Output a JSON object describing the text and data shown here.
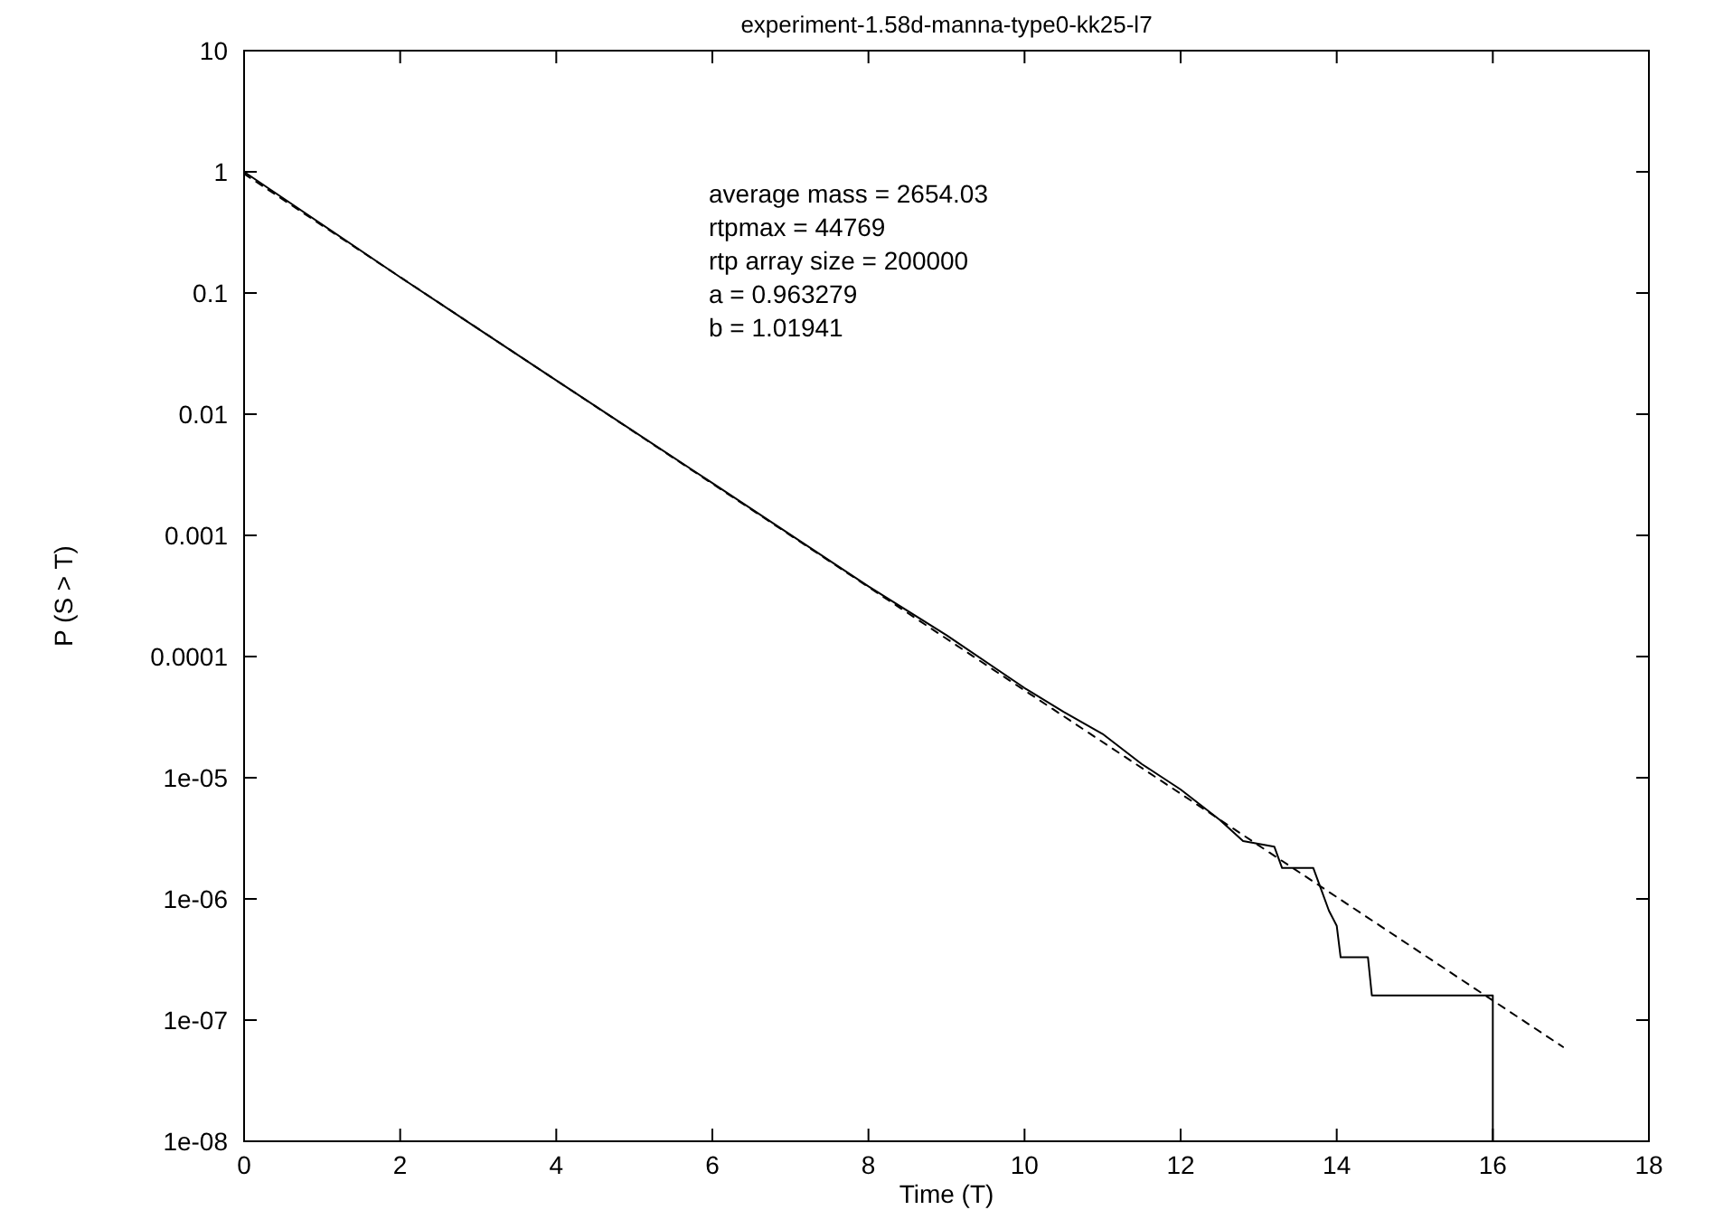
{
  "chart_data": {
    "type": "line",
    "title": "experiment-1.58d-manna-type0-kk25-l7",
    "xlabel": "Time (T)",
    "ylabel": "P (S > T)",
    "log": "y",
    "xlim": [
      0,
      18
    ],
    "xticks": [
      0,
      2,
      4,
      6,
      8,
      10,
      12,
      14,
      16,
      18
    ],
    "ylim": [
      1e-08,
      10
    ],
    "yticks": [
      10,
      1,
      0.1,
      0.01,
      0.001,
      0.0001,
      {
        "value": 1e-05,
        "label": "1e-05"
      },
      {
        "value": 1e-06,
        "label": "1e-06"
      },
      {
        "value": 1e-07,
        "label": "1e-07"
      },
      {
        "value": 1e-08,
        "label": "1e-08"
      }
    ],
    "annotations": [
      "average mass = 2654.03",
      "rtpmax = 44769",
      "rtp array size = 200000",
      "a = 0.963279",
      "b = 1.01941"
    ],
    "series": [
      {
        "color": "#000000",
        "line_style": "solid",
        "x": [
          0,
          2,
          4,
          6,
          8,
          9,
          10,
          10.5,
          11,
          11.5,
          12,
          12.5,
          12.8,
          13.2,
          13.3,
          13.7,
          13.8,
          13.9,
          14,
          14.05,
          14.4,
          14.45,
          16,
          16
        ],
        "values": [
          1,
          0.135,
          0.019,
          0.0027,
          0.00038,
          0.00015,
          5.5e-05,
          3.5e-05,
          2.3e-05,
          1.3e-05,
          8e-06,
          4.5e-06,
          3e-06,
          2.7e-06,
          1.8e-06,
          1.8e-06,
          1.2e-06,
          8e-07,
          6e-07,
          3.3e-07,
          3.3e-07,
          1.6e-07,
          1.6e-07,
          1e-08
        ]
      },
      {
        "color": "#000000",
        "line_style": "dashed",
        "x": [
          0,
          8,
          16.9
        ],
        "values": [
          0.963,
          0.000375,
          6e-08
        ]
      }
    ]
  }
}
